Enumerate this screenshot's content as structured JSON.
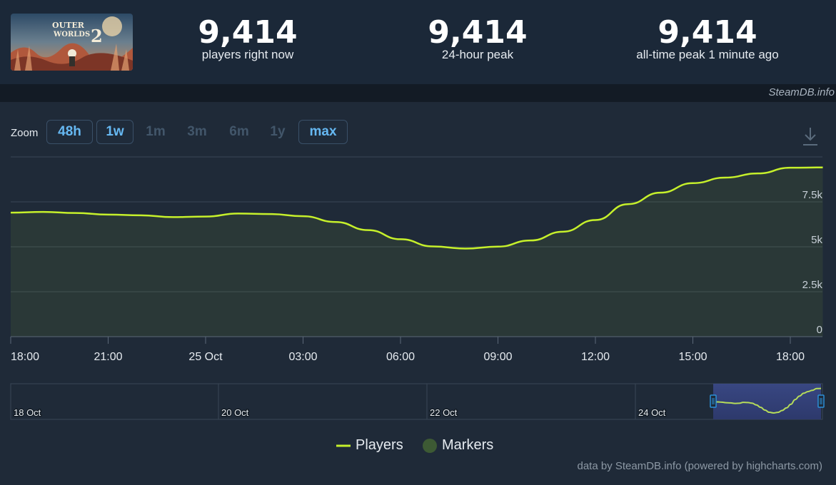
{
  "header": {
    "cover_text": "THE OUTER WORLDS 2",
    "stats": [
      {
        "value": "9,414",
        "label": "players right now"
      },
      {
        "value": "9,414",
        "label": "24-hour peak"
      },
      {
        "value": "9,414",
        "label": "all-time peak 1 minute ago"
      }
    ],
    "watermark": "SteamDB.info"
  },
  "zoom": {
    "label": "Zoom",
    "buttons": [
      {
        "label": "48h",
        "active": true
      },
      {
        "label": "1w",
        "active": true
      },
      {
        "label": "1m",
        "active": false
      },
      {
        "label": "3m",
        "active": false
      },
      {
        "label": "6m",
        "active": false
      },
      {
        "label": "1y",
        "active": false
      },
      {
        "label": "max",
        "active": true
      }
    ]
  },
  "chart_data": {
    "type": "area",
    "x_unit": "hour",
    "x_tick_labels": [
      "18:00",
      "21:00",
      "25 Oct",
      "03:00",
      "06:00",
      "09:00",
      "12:00",
      "15:00",
      "18:00"
    ],
    "y_tick_labels": [
      "0",
      "2.5k",
      "5k",
      "7.5k"
    ],
    "ylim": [
      0,
      10000
    ],
    "grid": true,
    "series": [
      {
        "name": "Players",
        "color": "#c6f02b",
        "x_hours_from_24_oct_18_00": [
          0,
          1,
          2,
          3,
          4,
          5,
          6,
          7,
          8,
          9,
          10,
          11,
          12,
          13,
          14,
          15,
          16,
          17,
          18,
          19,
          20,
          21,
          22,
          23,
          24,
          25
        ],
        "values": [
          6900,
          6940,
          6880,
          6790,
          6750,
          6650,
          6680,
          6850,
          6820,
          6700,
          6380,
          5930,
          5420,
          5020,
          4900,
          5010,
          5350,
          5840,
          6490,
          7370,
          8010,
          8540,
          8850,
          9080,
          9400,
          9414
        ]
      }
    ],
    "navigator": {
      "labels": [
        "18 Oct",
        "20 Oct",
        "22 Oct",
        "24 Oct"
      ]
    },
    "legend": [
      {
        "name": "Players",
        "color": "#c6f02b"
      },
      {
        "name": "Markers",
        "color": "#3d5a34"
      }
    ]
  },
  "credits": "data by SteamDB.info (powered by highcharts.com)"
}
